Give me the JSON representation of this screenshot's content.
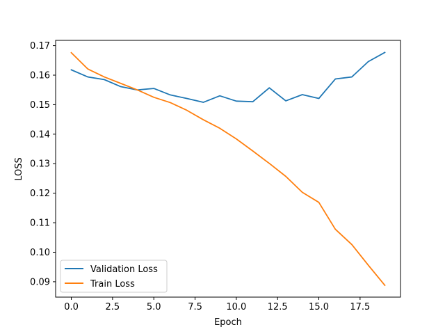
{
  "chart_data": {
    "type": "line",
    "title": "",
    "xlabel": "Epoch",
    "ylabel": "LOSS",
    "xlim": [
      -0.95,
      19.95
    ],
    "ylim": [
      0.08479,
      0.17179
    ],
    "x_ticks": [
      0.0,
      2.5,
      5.0,
      7.5,
      10.0,
      12.5,
      15.0,
      17.5
    ],
    "x_tick_labels": [
      "0.0",
      "2.5",
      "5.0",
      "7.5",
      "10.0",
      "12.5",
      "15.0",
      "17.5"
    ],
    "y_ticks": [
      0.09,
      0.1,
      0.11,
      0.12,
      0.13,
      0.14,
      0.15,
      0.16,
      0.17
    ],
    "y_tick_labels": [
      "0.09",
      "0.10",
      "0.11",
      "0.12",
      "0.13",
      "0.14",
      "0.15",
      "0.16",
      "0.17"
    ],
    "grid": false,
    "legend_position": "lower-left",
    "x": [
      0,
      1,
      2,
      3,
      4,
      5,
      6,
      7,
      8,
      9,
      10,
      11,
      12,
      13,
      14,
      15,
      16,
      17,
      18,
      19
    ],
    "series": [
      {
        "name": "Validation Loss",
        "color": "#1f77b4",
        "values": [
          0.1618,
          0.1594,
          0.1585,
          0.1561,
          0.155,
          0.1555,
          0.1533,
          0.1521,
          0.1508,
          0.153,
          0.1512,
          0.151,
          0.1557,
          0.1513,
          0.1534,
          0.1521,
          0.1587,
          0.1594,
          0.1646,
          0.1677
        ]
      },
      {
        "name": "Train Loss",
        "color": "#ff7f0e",
        "values": [
          0.1676,
          0.1621,
          0.1594,
          0.1572,
          0.155,
          0.1525,
          0.1507,
          0.1481,
          0.1449,
          0.142,
          0.1384,
          0.1343,
          0.1301,
          0.1257,
          0.1203,
          0.1169,
          0.1078,
          0.1026,
          0.0956,
          0.0888
        ]
      }
    ]
  }
}
